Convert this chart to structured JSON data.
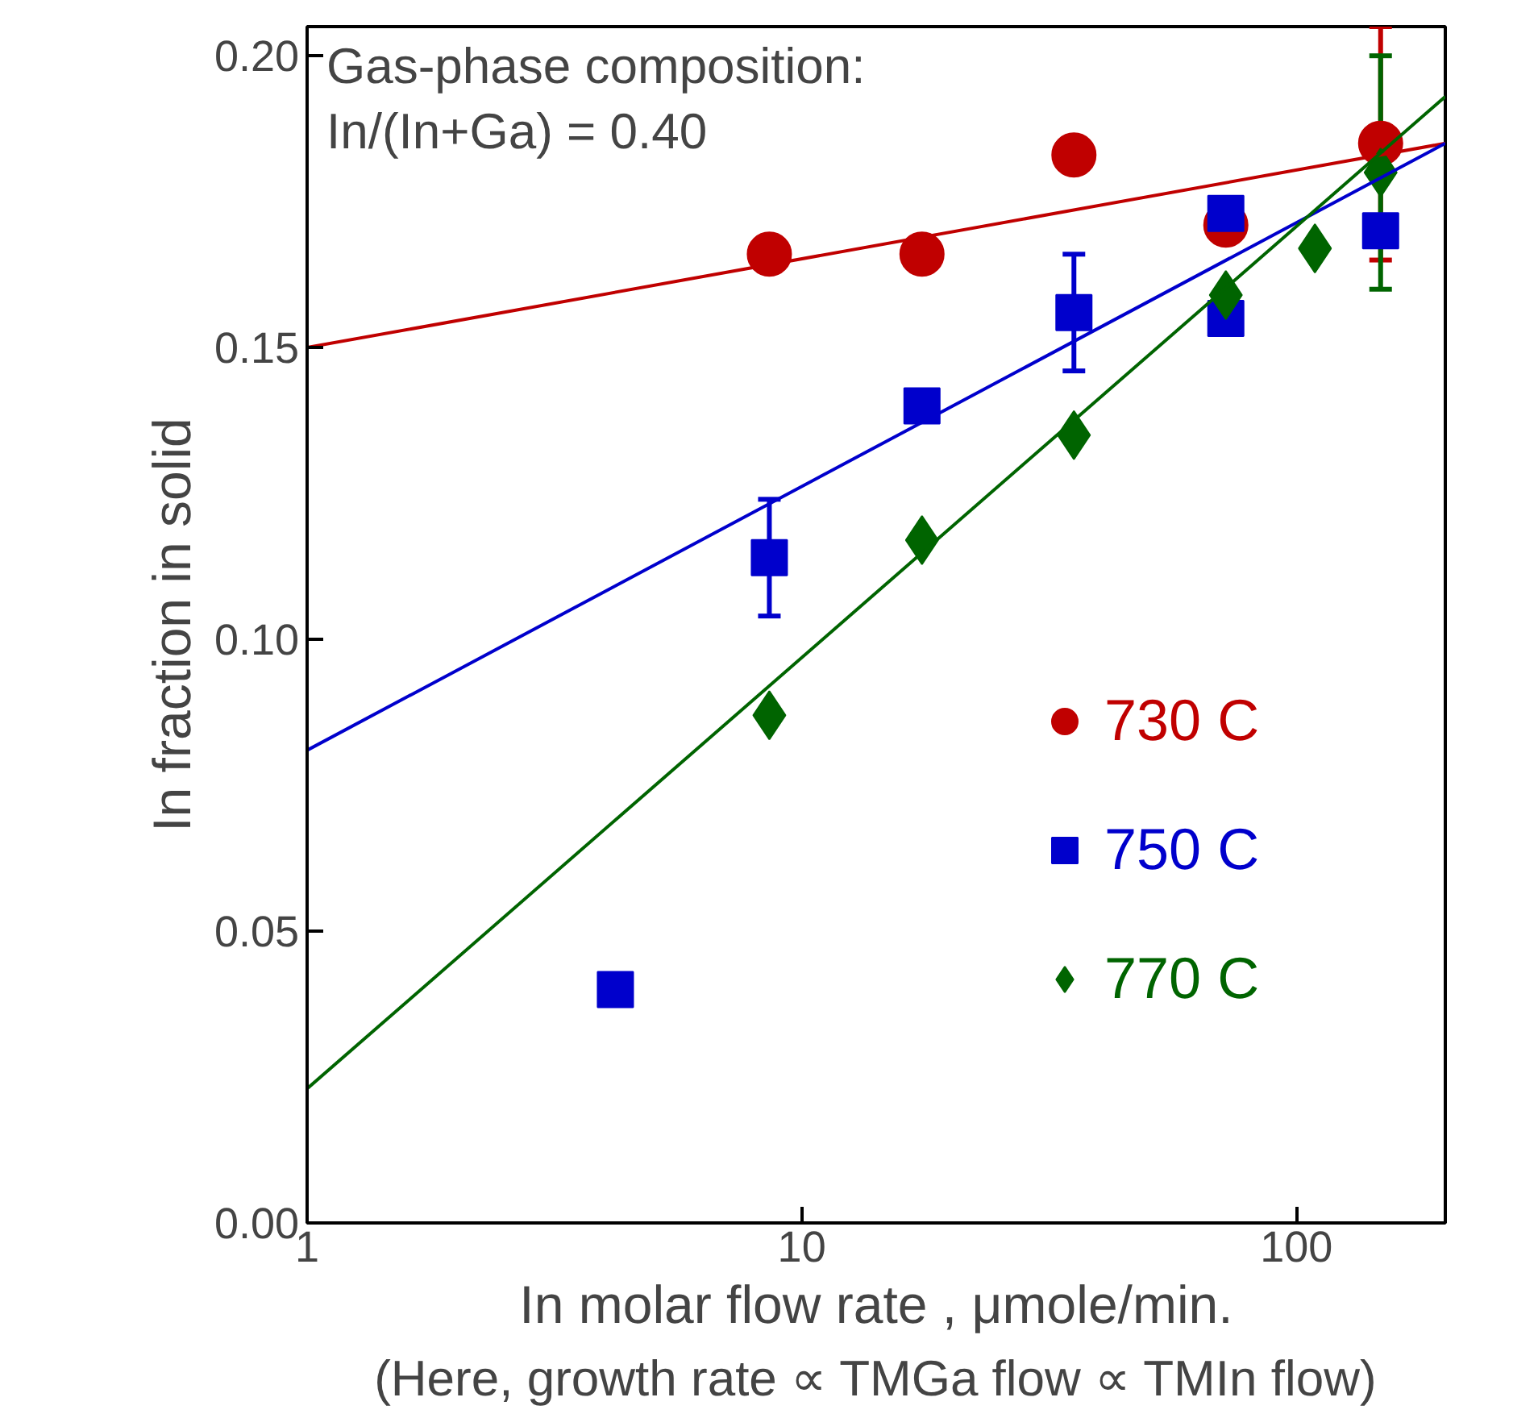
{
  "chart_data": {
    "type": "scatter",
    "xlabel": "In molar flow rate , μmole/min.",
    "ylabel": "In fraction in solid",
    "annotations": [
      "Gas-phase composition:\nIn/(In+Ga) = 0.40",
      "(Here, growth rate ∝ TMGa flow ∝ TMIn flow)"
    ],
    "log": "x",
    "xlim": [
      1,
      200
    ],
    "xticks": [
      1,
      10,
      100
    ],
    "ylim": [
      0,
      0.205
    ],
    "yticks": [
      {
        "value": 0,
        "label": "0.00"
      },
      {
        "value": 0.05,
        "label": "0.05"
      },
      {
        "value": 0.1,
        "label": "0.10"
      },
      {
        "value": 0.15,
        "label": "0.15"
      },
      {
        "value": 0.2,
        "label": "0.20"
      }
    ],
    "grid": false,
    "legend": "right",
    "series": [
      {
        "name": "730 C",
        "color": "#c00000",
        "marker": "circle",
        "x": [
          8.6,
          17.5,
          35.5,
          72,
          148
        ],
        "values": [
          0.166,
          0.166,
          0.183,
          0.171,
          0.185
        ],
        "errors": [
          null,
          null,
          null,
          null,
          0.02
        ]
      },
      {
        "name": "750 C",
        "color": "#0000cc",
        "marker": "square",
        "x": [
          4.2,
          8.6,
          17.5,
          35.5,
          72,
          72,
          148
        ],
        "values": [
          0.04,
          0.114,
          0.14,
          0.156,
          0.173,
          0.155,
          0.17
        ],
        "errors": [
          null,
          0.01,
          null,
          0.01,
          null,
          null,
          null
        ]
      },
      {
        "name": "770 C",
        "color": "#006400",
        "marker": "diamond",
        "x": [
          8.6,
          17.5,
          35.5,
          72,
          109,
          148
        ],
        "values": [
          0.087,
          0.117,
          0.135,
          0.159,
          0.167,
          0.18
        ],
        "errors": [
          null,
          null,
          null,
          null,
          null,
          0.02
        ]
      },
      {
        "type": "line",
        "color": "#c00000",
        "x": [
          1,
          200
        ],
        "values": [
          0.15,
          0.185
        ]
      },
      {
        "type": "line",
        "color": "#0000cc",
        "x": [
          1,
          200
        ],
        "values": [
          0.081,
          0.185
        ]
      },
      {
        "type": "line",
        "color": "#006400",
        "x": [
          1,
          200
        ],
        "values": [
          0.023,
          0.193
        ]
      }
    ]
  }
}
